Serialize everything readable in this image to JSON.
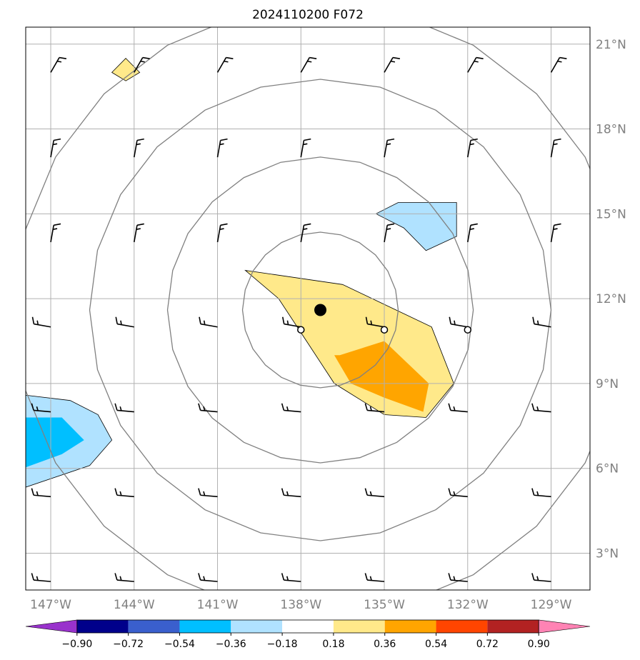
{
  "title": "2024110200 F072",
  "map": {
    "lon_range": [
      -147.9,
      -127.6
    ],
    "lat_range": [
      1.7,
      21.6
    ],
    "lat_ticks": [
      {
        "value": 21,
        "label": "21°N"
      },
      {
        "value": 18,
        "label": "18°N"
      },
      {
        "value": 15,
        "label": "15°N"
      },
      {
        "value": 12,
        "label": "12°N"
      },
      {
        "value": 9,
        "label": "9°N"
      },
      {
        "value": 6,
        "label": "6°N"
      },
      {
        "value": 3,
        "label": "3°N"
      }
    ],
    "lon_ticks": [
      {
        "value": -147,
        "label": "147°W"
      },
      {
        "value": -144,
        "label": "144°W"
      },
      {
        "value": -141,
        "label": "141°W"
      },
      {
        "value": -138,
        "label": "138°W"
      },
      {
        "value": -135,
        "label": "135°W"
      },
      {
        "value": -132,
        "label": "132°W"
      },
      {
        "value": -129,
        "label": "129°W"
      }
    ],
    "grid": true,
    "storm_center": {
      "lon": -137.3,
      "lat": 11.6
    },
    "markers": [
      {
        "lon": -138.0,
        "lat": 10.9
      },
      {
        "lon": -135.0,
        "lat": 10.9
      },
      {
        "lon": -132.0,
        "lat": 10.9
      }
    ],
    "range_rings_deg": [
      2.8,
      5.5,
      8.3,
      11.0
    ]
  },
  "chart_data": {
    "type": "heatmap",
    "variable_units": "",
    "colorbar": {
      "ticks": [
        "−0.90",
        "−0.72",
        "−0.54",
        "−0.36",
        "−0.18",
        "0.18",
        "0.36",
        "0.54",
        "0.72",
        "0.90"
      ],
      "colors": [
        "#9932cc",
        "#00008b",
        "#3a5fcd",
        "#00bfff",
        "#b0e2ff",
        "#ffffff",
        "#ffe98a",
        "#ffa500",
        "#ff4500",
        "#b22222",
        "#ff83b4"
      ]
    },
    "anomaly_regions": [
      {
        "level": 0.18,
        "color": "#ffe98a",
        "lon": [
          -140.0,
          -136.5,
          -135.0,
          -133.3,
          -132.5,
          -133.5,
          -135.0,
          -136.8,
          -137.8,
          -138.8,
          -140.0
        ],
        "lat": [
          13.0,
          12.5,
          11.8,
          11.0,
          9.0,
          7.8,
          7.9,
          9.0,
          10.5,
          12.0,
          13.0
        ]
      },
      {
        "level": 0.36,
        "color": "#ffa500",
        "lon": [
          -136.6,
          -135.0,
          -133.4,
          -133.6,
          -135.0,
          -136.2,
          -136.8
        ],
        "lat": [
          10.0,
          10.5,
          9.0,
          8.0,
          8.5,
          9.0,
          10.0
        ]
      },
      {
        "level": -0.18,
        "color": "#b0e2ff",
        "lon": [
          -135.3,
          -134.5,
          -132.4,
          -132.4,
          -133.5,
          -134.3,
          -135.3
        ],
        "lat": [
          15.0,
          15.4,
          15.4,
          14.2,
          13.7,
          14.5,
          15.0
        ]
      },
      {
        "level": -0.18,
        "color": "#b0e2ff",
        "lon": [
          -148,
          -146.3,
          -145.3,
          -144.8,
          -145.6,
          -148
        ],
        "lat": [
          8.6,
          8.4,
          7.9,
          7.0,
          6.1,
          5.3
        ]
      },
      {
        "level": -0.36,
        "color": "#00bfff",
        "lon": [
          -148,
          -146.6,
          -145.8,
          -146.6,
          -148
        ],
        "lat": [
          7.8,
          7.8,
          7.0,
          6.5,
          6.0
        ]
      },
      {
        "level": 0.18,
        "color": "#ffe98a",
        "lon": [
          -144.3,
          -143.8,
          -144.3,
          -144.8
        ],
        "lat": [
          20.5,
          20.0,
          19.7,
          20.0
        ]
      }
    ],
    "wind_barbs_lon": [
      -147,
      -144,
      -141,
      -138,
      -135,
      -132,
      -129
    ],
    "wind_barbs_lat": [
      20,
      17,
      14,
      11,
      8,
      5,
      2
    ]
  },
  "colors": {
    "ring": "#808080",
    "grid": "#b0b0b0",
    "barb": "#000000"
  }
}
